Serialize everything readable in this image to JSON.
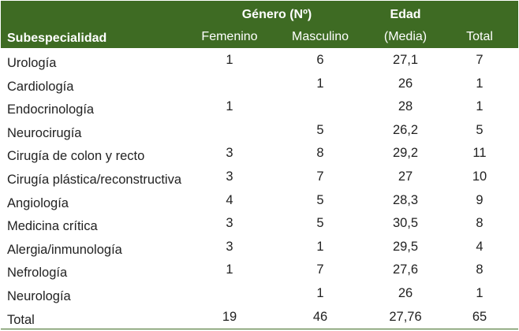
{
  "header": {
    "gender_group": "Género (Nº)",
    "age_top": "Edad",
    "col_subspecialty": "Subespecialidad",
    "col_female": "Femenino",
    "col_male": "Masculino",
    "col_age": "(Media)",
    "col_total": "Total"
  },
  "rows": [
    {
      "name": "Urología",
      "female": "1",
      "male": "6",
      "age": "27,1",
      "total": "7"
    },
    {
      "name": "Cardiología",
      "female": "",
      "male": "1",
      "age": "26",
      "total": "1"
    },
    {
      "name": "Endocrinología",
      "female": "1",
      "male": "",
      "age": "28",
      "total": "1"
    },
    {
      "name": "Neurocirugía",
      "female": "",
      "male": "5",
      "age": "26,2",
      "total": "5"
    },
    {
      "name": "Cirugía de colon y recto",
      "female": "3",
      "male": "8",
      "age": "29,2",
      "total": "11"
    },
    {
      "name": "Cirugía plástica/reconstructiva",
      "female": "3",
      "male": "7",
      "age": "27",
      "total": "10"
    },
    {
      "name": "Angiología",
      "female": "4",
      "male": "5",
      "age": "28,3",
      "total": "9"
    },
    {
      "name": "Medicina crítica",
      "female": "3",
      "male": "5",
      "age": "30,5",
      "total": "8"
    },
    {
      "name": "Alergia/inmunología",
      "female": "3",
      "male": "1",
      "age": "29,5",
      "total": "4"
    },
    {
      "name": "Nefrología",
      "female": "1",
      "male": "7",
      "age": "27,6",
      "total": "8"
    },
    {
      "name": "Neurología",
      "female": "",
      "male": "1",
      "age": "26",
      "total": "1"
    }
  ],
  "totals": {
    "name": "Total",
    "female": "19",
    "male": "46",
    "age": "27,76",
    "total": "65"
  },
  "colors": {
    "header_bg": "#3e6b23",
    "header_text": "#ffffff",
    "body_text": "#222222"
  }
}
